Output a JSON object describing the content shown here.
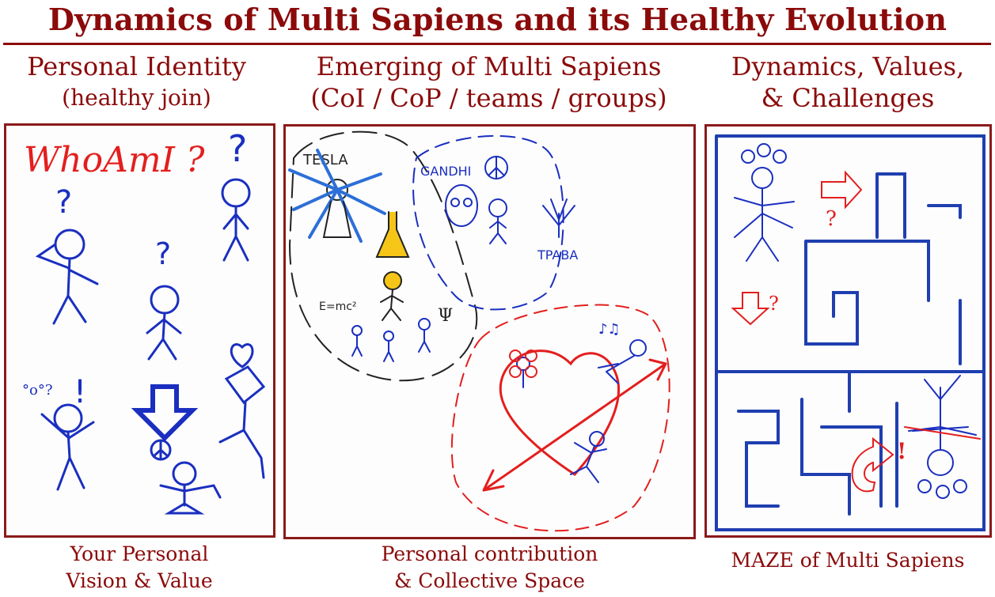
{
  "title": "Dynamics of Multi Sapiens and its Healthy Evolution",
  "columns": [
    {
      "heading": "Personal Identity",
      "subheading": "(healthy join)",
      "caption_line1": "Your Personal",
      "caption_line2": "Vision & Value",
      "drawing_labels": {
        "whoami": "WhoAmI ?",
        "question": "?",
        "exclaim": "!"
      }
    },
    {
      "heading": "Emerging of Multi Sapiens",
      "subheading": "(CoI / CoP / teams / groups)",
      "caption_line1": "Personal contribution",
      "caption_line2": "& Collective Space",
      "drawing_labels": {
        "tesla": "TESLA",
        "gandhi": "GANDHI",
        "trava": "TPABA",
        "formula": "E=mc²",
        "psi": "Ψ"
      }
    },
    {
      "heading": "Dynamics, Values,",
      "subheading": "& Challenges",
      "caption_line1": "MAZE of Multi Sapiens",
      "drawing_labels": {
        "question": "?",
        "exclaim": "!"
      }
    }
  ],
  "colors": {
    "title": "#8b0a0a",
    "ink_blue": "#1a2fc0",
    "ink_red": "#e41e1e",
    "frame": "#8b1a1a"
  }
}
